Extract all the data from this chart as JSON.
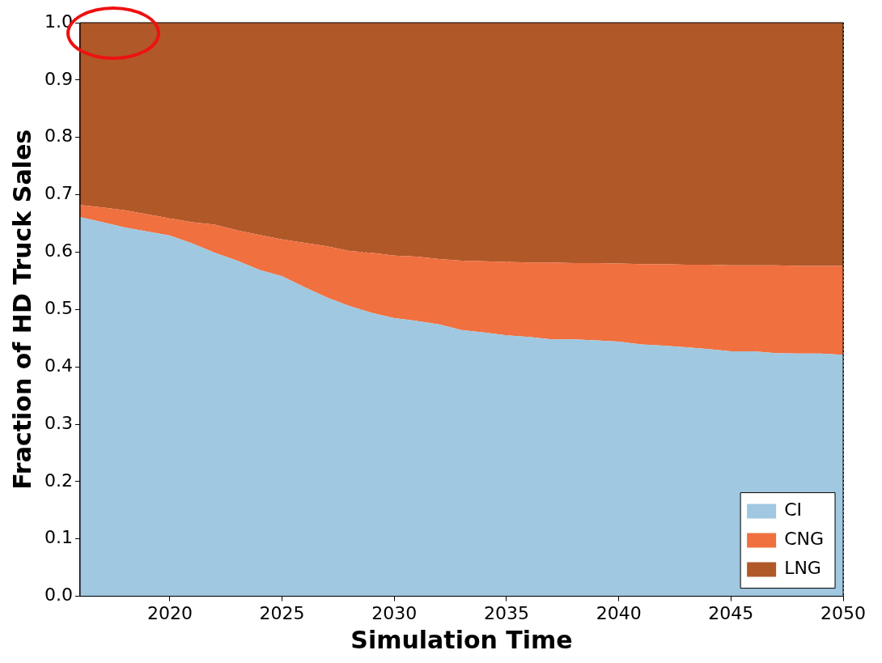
{
  "chart_data": {
    "type": "area",
    "stacked": true,
    "xlabel": "Simulation Time",
    "ylabel": "Fraction of HD Truck Sales",
    "x": [
      2016,
      2017,
      2018,
      2019,
      2020,
      2021,
      2022,
      2023,
      2024,
      2025,
      2026,
      2027,
      2028,
      2029,
      2030,
      2031,
      2032,
      2033,
      2034,
      2035,
      2036,
      2037,
      2038,
      2039,
      2040,
      2041,
      2042,
      2043,
      2044,
      2045,
      2046,
      2047,
      2048,
      2049,
      2050
    ],
    "series": [
      {
        "name": "CI",
        "color": "#a0c8e0",
        "values": [
          0.661,
          0.652,
          0.643,
          0.636,
          0.629,
          0.615,
          0.599,
          0.585,
          0.569,
          0.558,
          0.539,
          0.521,
          0.506,
          0.494,
          0.485,
          0.48,
          0.474,
          0.464,
          0.46,
          0.455,
          0.452,
          0.448,
          0.448,
          0.446,
          0.444,
          0.439,
          0.437,
          0.434,
          0.431,
          0.427,
          0.427,
          0.424,
          0.423,
          0.423,
          0.421
        ]
      },
      {
        "name": "CNG",
        "color": "#f07040",
        "values": [
          0.021,
          0.026,
          0.03,
          0.03,
          0.03,
          0.037,
          0.049,
          0.053,
          0.061,
          0.064,
          0.077,
          0.089,
          0.096,
          0.105,
          0.109,
          0.112,
          0.114,
          0.121,
          0.124,
          0.128,
          0.13,
          0.134,
          0.133,
          0.135,
          0.136,
          0.14,
          0.142,
          0.144,
          0.147,
          0.15,
          0.15,
          0.153,
          0.153,
          0.153,
          0.155
        ]
      },
      {
        "name": "LNG",
        "color": "#b05828",
        "values": [
          0.318,
          0.322,
          0.327,
          0.334,
          0.341,
          0.348,
          0.352,
          0.362,
          0.37,
          0.378,
          0.384,
          0.39,
          0.398,
          0.401,
          0.406,
          0.408,
          0.412,
          0.415,
          0.416,
          0.417,
          0.418,
          0.418,
          0.419,
          0.419,
          0.42,
          0.421,
          0.421,
          0.422,
          0.422,
          0.423,
          0.423,
          0.423,
          0.424,
          0.424,
          0.424
        ]
      }
    ],
    "xlim": [
      2016,
      2050
    ],
    "xticks": [
      2020,
      2025,
      2030,
      2035,
      2040,
      2045,
      2050
    ],
    "ylim": [
      0,
      1
    ],
    "yticks": [
      {
        "value": 0,
        "label": "0.0"
      },
      0.1,
      0.2,
      0.3,
      0.4,
      0.5,
      0.6,
      0.7,
      0.8,
      0.9,
      {
        "value": 1,
        "label": "1.0"
      }
    ],
    "grid": true,
    "legend": "bottom right"
  }
}
